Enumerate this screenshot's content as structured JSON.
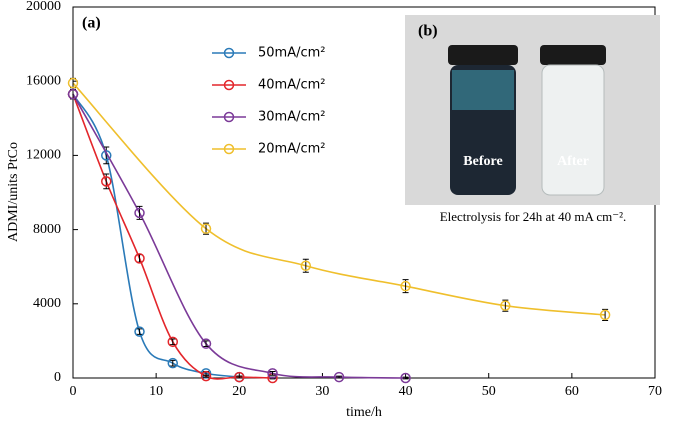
{
  "chart_data": {
    "type": "line",
    "annotation": "(a)",
    "xlabel": "time/h",
    "ylabel": "ADMI/units PtCo",
    "xlim": [
      0,
      70
    ],
    "xticks": [
      0,
      10,
      20,
      30,
      40,
      50,
      60,
      70
    ],
    "ylim": [
      0,
      20000
    ],
    "yticks": [
      0,
      4000,
      8000,
      12000,
      16000,
      20000
    ],
    "series": [
      {
        "name": "50mA/cm²",
        "color": "#2a7ab8",
        "x": [
          0,
          4,
          8,
          12,
          16,
          20
        ],
        "values": [
          15300,
          12000,
          2500,
          800,
          250,
          50
        ],
        "errors": [
          250,
          450,
          150,
          150,
          100,
          50
        ]
      },
      {
        "name": "40mA/cm²",
        "color": "#e3262b",
        "x": [
          0,
          4,
          8,
          12,
          16,
          20,
          24
        ],
        "values": [
          15300,
          10600,
          6450,
          1950,
          100,
          50,
          0
        ],
        "errors": [
          250,
          400,
          200,
          150,
          50,
          50,
          50
        ]
      },
      {
        "name": "30mA/cm²",
        "color": "#7b3a98",
        "x": [
          0,
          8,
          16,
          24,
          32,
          40
        ],
        "values": [
          15300,
          8900,
          1850,
          250,
          50,
          0
        ],
        "errors": [
          250,
          350,
          150,
          100,
          50,
          50
        ]
      },
      {
        "name": "20mA/cm²",
        "color": "#efbf2c",
        "x": [
          0,
          16,
          28,
          40,
          52,
          64
        ],
        "values": [
          15900,
          8050,
          6050,
          4950,
          3900,
          3400
        ],
        "errors": [
          250,
          300,
          350,
          350,
          300,
          300
        ]
      }
    ],
    "inset": {
      "label": "(b)",
      "texts": [
        "Before",
        "After"
      ],
      "caption": "Electrolysis for 24h at 40 mA cm⁻²."
    }
  }
}
